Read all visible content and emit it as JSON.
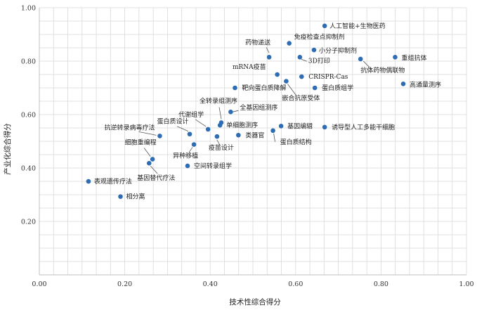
{
  "chart_data": {
    "type": "scatter",
    "title": "",
    "xlabel": "技术性综合得分",
    "ylabel": "产业化综合得分",
    "xlim": [
      0,
      1
    ],
    "ylim": [
      0,
      1
    ],
    "xticks": [
      "0.00",
      "0.20",
      "0.40",
      "0.60",
      "0.80",
      "1.00"
    ],
    "yticks": [
      "0.20",
      "0.40",
      "0.60",
      "0.80",
      "1.00"
    ],
    "grid": true,
    "points": [
      {
        "label": "人工智能+生物医药",
        "x": 0.668,
        "y": 0.932
      },
      {
        "label": "免疫检查点抑制剂",
        "x": 0.585,
        "y": 0.867
      },
      {
        "label": "药物递送",
        "x": 0.538,
        "y": 0.815
      },
      {
        "label": "小分子抑制剂",
        "x": 0.643,
        "y": 0.842
      },
      {
        "label": "3D打印",
        "x": 0.61,
        "y": 0.815
      },
      {
        "label": "重组抗体",
        "x": 0.833,
        "y": 0.815
      },
      {
        "label": "抗体药物偶联物",
        "x": 0.752,
        "y": 0.808
      },
      {
        "label": "mRNA疫苗",
        "x": 0.557,
        "y": 0.75
      },
      {
        "label": "CRISPR-Cas",
        "x": 0.614,
        "y": 0.742
      },
      {
        "label": "嵌合抗原受体",
        "x": 0.578,
        "y": 0.725
      },
      {
        "label": "高通量测序",
        "x": 0.852,
        "y": 0.715
      },
      {
        "label": "靶向蛋白质降解",
        "x": 0.458,
        "y": 0.7
      },
      {
        "label": "蛋白质组学",
        "x": 0.645,
        "y": 0.7
      },
      {
        "label": "全基因组测序",
        "x": 0.448,
        "y": 0.61
      },
      {
        "label": "全转录组测序",
        "x": 0.426,
        "y": 0.57
      },
      {
        "label": "代谢组学",
        "x": 0.395,
        "y": 0.545
      },
      {
        "label": "单细胞测序",
        "x": 0.423,
        "y": 0.56
      },
      {
        "label": "蛋白质设计",
        "x": 0.352,
        "y": 0.527
      },
      {
        "label": "抗逆转录病毒疗法",
        "x": 0.282,
        "y": 0.52
      },
      {
        "label": "基因编辑",
        "x": 0.566,
        "y": 0.557
      },
      {
        "label": "诱导型人工多能干细胞",
        "x": 0.668,
        "y": 0.553
      },
      {
        "label": "类器官",
        "x": 0.466,
        "y": 0.523
      },
      {
        "label": "疫苗设计",
        "x": 0.416,
        "y": 0.518
      },
      {
        "label": "蛋白质结构",
        "x": 0.547,
        "y": 0.54
      },
      {
        "label": "异种移植",
        "x": 0.362,
        "y": 0.488
      },
      {
        "label": "细胞重编程",
        "x": 0.265,
        "y": 0.433
      },
      {
        "label": "基因替代疗法",
        "x": 0.257,
        "y": 0.418
      },
      {
        "label": "空间转录组学",
        "x": 0.347,
        "y": 0.408
      },
      {
        "label": "表观遗传疗法",
        "x": 0.115,
        "y": 0.35
      },
      {
        "label": "相分离",
        "x": 0.19,
        "y": 0.293
      }
    ]
  }
}
